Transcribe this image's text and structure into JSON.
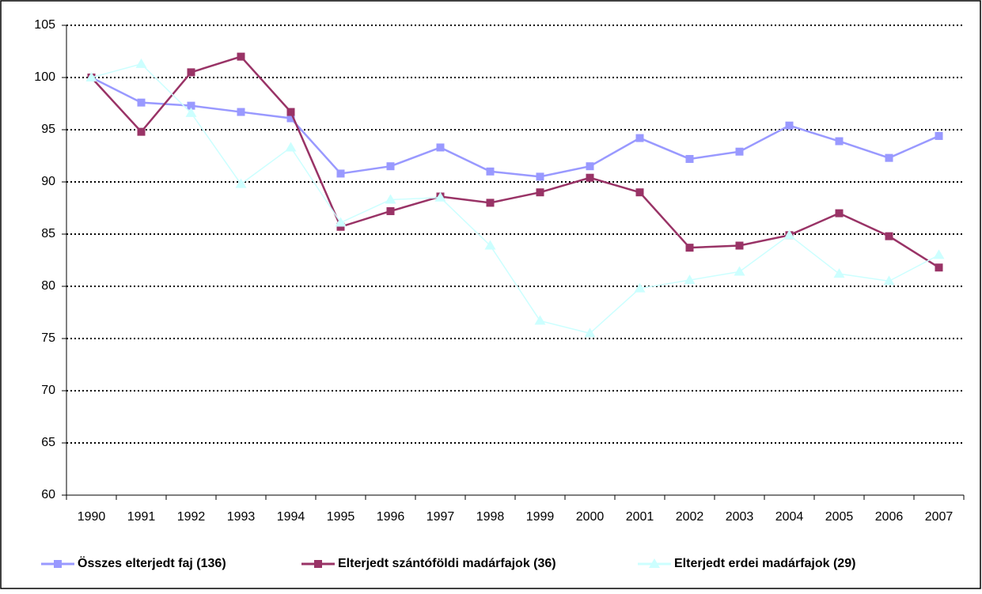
{
  "chart_data": {
    "type": "line",
    "categories": [
      "1990",
      "1991",
      "1992",
      "1993",
      "1994",
      "1995",
      "1996",
      "1997",
      "1998",
      "1999",
      "2000",
      "2001",
      "2002",
      "2003",
      "2004",
      "2005",
      "2006",
      "2007"
    ],
    "series": [
      {
        "name": "Összes elterjedt faj (136)",
        "color": "#9999ff",
        "marker": "square",
        "values": [
          100,
          97.6,
          97.3,
          96.7,
          96.1,
          90.8,
          91.5,
          93.3,
          91.0,
          90.5,
          91.5,
          94.2,
          92.2,
          92.9,
          95.4,
          93.9,
          92.3,
          94.4
        ]
      },
      {
        "name": "Elterjedt szántóföldi madárfajok (36)",
        "color": "#993366",
        "marker": "square",
        "values": [
          100,
          94.8,
          100.5,
          102.0,
          96.7,
          85.7,
          87.2,
          88.6,
          88.0,
          89.0,
          90.4,
          89.0,
          83.7,
          83.9,
          84.9,
          87.0,
          84.8,
          81.8
        ]
      },
      {
        "name": "Elterjedt erdei madárfajok (29)",
        "color": "#ccffff",
        "marker": "triangle",
        "values": [
          100,
          101.3,
          96.6,
          89.8,
          93.3,
          86.1,
          88.3,
          88.5,
          83.9,
          76.7,
          75.5,
          79.8,
          80.6,
          81.4,
          84.9,
          81.2,
          80.5,
          83.0
        ]
      }
    ],
    "ylim": [
      60,
      105
    ],
    "yticks": [
      60,
      65,
      70,
      75,
      80,
      85,
      90,
      95,
      100,
      105
    ],
    "grid": true,
    "legend": "bottom"
  }
}
